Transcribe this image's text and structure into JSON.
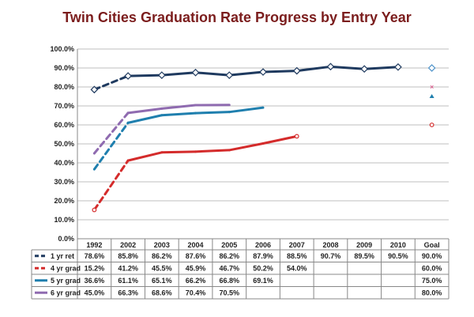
{
  "chart_data": {
    "type": "line",
    "title": "Twin Cities Graduation Rate Progress by Entry Year",
    "categories": [
      "1992",
      "2002",
      "2003",
      "2004",
      "2005",
      "2006",
      "2007",
      "2008",
      "2009",
      "2010",
      "Goal"
    ],
    "ylim": [
      0,
      100
    ],
    "y_ticks": [
      "0.0%",
      "10.0%",
      "20.0%",
      "30.0%",
      "40.0%",
      "50.0%",
      "60.0%",
      "70.0%",
      "80.0%",
      "90.0%",
      "100.0%"
    ],
    "grid": true,
    "legend": "data-table-rows",
    "series": [
      {
        "name": "1 yr ret",
        "color": "#1f3a5f",
        "marker": "diamond",
        "values": [
          78.6,
          85.8,
          86.2,
          87.6,
          86.2,
          87.9,
          88.5,
          90.7,
          89.5,
          90.5,
          90.0
        ],
        "labels": [
          "78.6%",
          "85.8%",
          "86.2%",
          "87.6%",
          "86.2%",
          "87.9%",
          "88.5%",
          "90.7%",
          "89.5%",
          "90.5%",
          "90.0%"
        ]
      },
      {
        "name": "4 yr grad",
        "color": "#d42b2b",
        "marker": "circle",
        "values": [
          15.2,
          41.2,
          45.5,
          45.9,
          46.7,
          50.2,
          54.0,
          null,
          null,
          null,
          60.0
        ],
        "labels": [
          "15.2%",
          "41.2%",
          "45.5%",
          "45.9%",
          "46.7%",
          "50.2%",
          "54.0%",
          "",
          "",
          "",
          "60.0%"
        ]
      },
      {
        "name": "5 yr grad",
        "color": "#1f7fae",
        "marker": "triangle",
        "values": [
          36.6,
          61.1,
          65.1,
          66.2,
          66.8,
          69.1,
          null,
          null,
          null,
          null,
          75.0
        ],
        "labels": [
          "36.6%",
          "61.1%",
          "65.1%",
          "66.2%",
          "66.8%",
          "69.1%",
          "",
          "",
          "",
          "",
          "75.0%"
        ]
      },
      {
        "name": "6 yr grad",
        "color": "#8f6bb0",
        "marker": "star",
        "values": [
          45.0,
          66.3,
          68.6,
          70.4,
          70.5,
          null,
          null,
          null,
          null,
          null,
          80.0
        ],
        "labels": [
          "45.0%",
          "66.3%",
          "68.6%",
          "70.4%",
          "70.5%",
          "",
          "",
          "",
          "",
          "",
          "80.0%"
        ]
      }
    ]
  }
}
